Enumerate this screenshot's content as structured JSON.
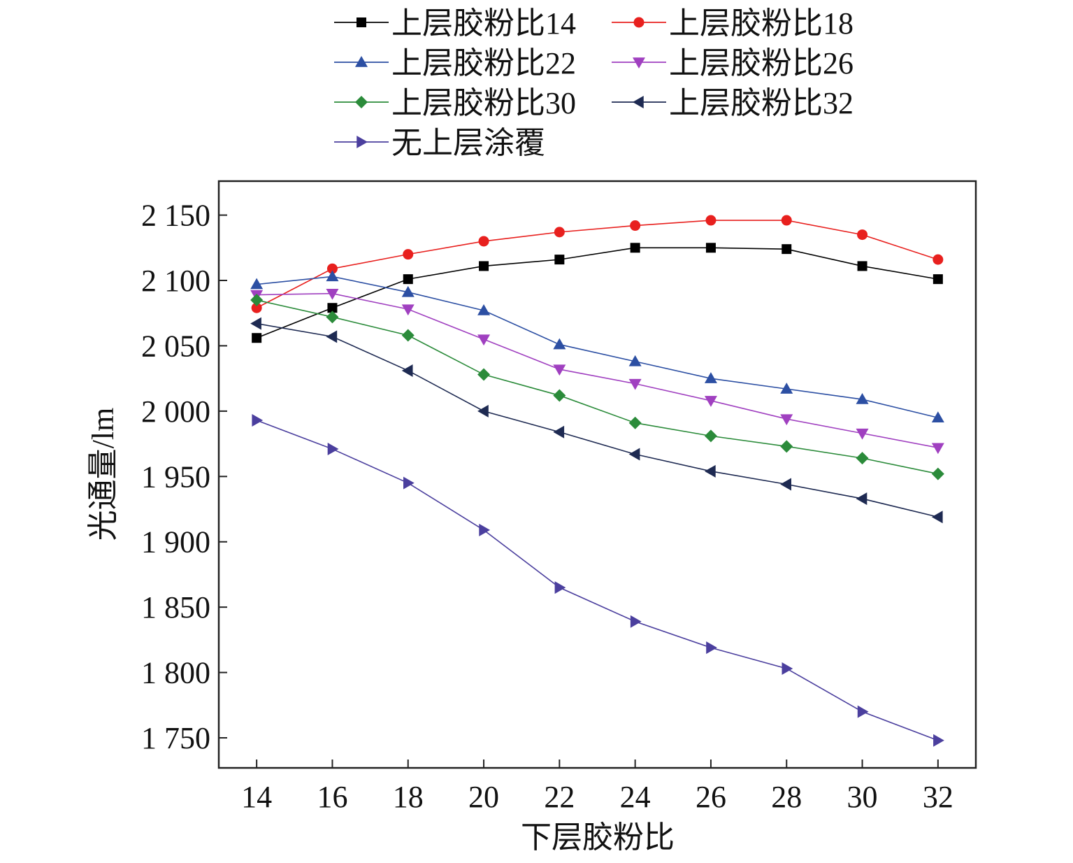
{
  "chart_data": {
    "type": "line",
    "title": "",
    "xlabel": "下层胶粉比",
    "ylabel": "光通量/lm",
    "x": [
      14,
      16,
      18,
      20,
      22,
      24,
      26,
      28,
      30,
      32
    ],
    "x_tick_labels": [
      "14",
      "16",
      "18",
      "20",
      "22",
      "24",
      "26",
      "28",
      "30",
      "32"
    ],
    "xlim": [
      13,
      33
    ],
    "ylim": [
      1727,
      2176
    ],
    "y_ticks": [
      1750,
      1800,
      1850,
      1900,
      1950,
      2000,
      2050,
      2100,
      2150
    ],
    "y_tick_labels": [
      "1 750",
      "1 800",
      "1 850",
      "1 900",
      "1 950",
      "2 000",
      "2 050",
      "2 100",
      "2 150"
    ],
    "grid": false,
    "legend_position": "top",
    "series": [
      {
        "name": "上层胶粉比14",
        "color": "#000000",
        "marker": "square",
        "values": [
          2056,
          2079,
          2101,
          2111,
          2116,
          2125,
          2125,
          2124,
          2111,
          2101
        ]
      },
      {
        "name": "上层胶粉比18",
        "color": "#e8201e",
        "marker": "circle",
        "values": [
          2079,
          2109,
          2120,
          2130,
          2137,
          2142,
          2146,
          2146,
          2135,
          2116
        ]
      },
      {
        "name": "上层胶粉比22",
        "color": "#2c4fa3",
        "marker": "triangle-up",
        "values": [
          2097,
          2103,
          2091,
          2077,
          2051,
          2038,
          2025,
          2017,
          2009,
          1995
        ]
      },
      {
        "name": "上层胶粉比26",
        "color": "#a040c0",
        "marker": "triangle-down",
        "values": [
          2089,
          2090,
          2078,
          2055,
          2032,
          2021,
          2008,
          1994,
          1983,
          1972
        ]
      },
      {
        "name": "上层胶粉比30",
        "color": "#2b8b3a",
        "marker": "diamond",
        "values": [
          2085,
          2072,
          2058,
          2028,
          2012,
          1991,
          1981,
          1973,
          1964,
          1952
        ]
      },
      {
        "name": "上层胶粉比32",
        "color": "#1e2a52",
        "marker": "triangle-left",
        "values": [
          2067,
          2057,
          2031,
          2000,
          1984,
          1967,
          1954,
          1944,
          1933,
          1919
        ]
      },
      {
        "name": "无上层涂覆",
        "color": "#4b3f9e",
        "marker": "triangle-right",
        "values": [
          1993,
          1971,
          1945,
          1909,
          1865,
          1839,
          1819,
          1803,
          1770,
          1748
        ]
      }
    ]
  }
}
